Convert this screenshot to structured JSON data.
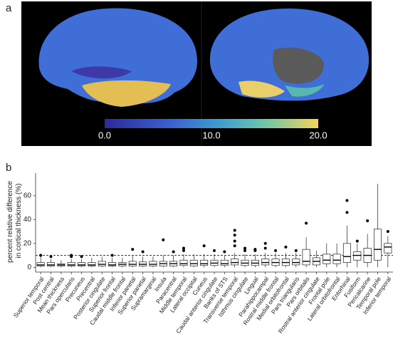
{
  "panel_a": {
    "label": "a",
    "colorbar": {
      "lim": [
        0,
        20
      ],
      "ticks": [
        {
          "value": 0,
          "label": "0.0"
        },
        {
          "value": 10,
          "label": "10.0"
        },
        {
          "value": 20,
          "label": "20.0"
        }
      ]
    }
  },
  "chart_data": {
    "type": "box",
    "panel_label": "b",
    "y_label": [
      "percent relative difference",
      "in cortical thickness (%)"
    ],
    "ylim": [
      -4,
      79
    ],
    "yticks": [
      0,
      20,
      40,
      60
    ],
    "reference_line": 10,
    "categories": [
      "Superior temporal",
      "Post central",
      "Mean thickness",
      "Pars opercularis",
      "Precuneus",
      "Precentral",
      "Posterior cingulate",
      "Superior frontal",
      "Caudal middle frontal",
      "Inferior parietal",
      "Superior parietal",
      "Supramarginal",
      "Insula",
      "Paracentral",
      "Middle temporal",
      "Lateral occipital",
      "Cuneus",
      "Caudal anterior cingulate",
      "Banks of STS",
      "Transverse temporal",
      "Isthmus cingulate",
      "Lingual",
      "Parahippocampal",
      "Rostral middle frontal",
      "Medial orbitofrontal",
      "Pars triangularis",
      "Pars orbitalis",
      "Rostral anterior cingulate",
      "Frontal pole",
      "Lateral orbitofrontal",
      "Entorhinal",
      "Fusiform",
      "Pericalcarine",
      "Temporal pole",
      "Inferior temporal"
    ],
    "boxes": [
      {
        "min": 0,
        "q1": 1,
        "median": 2,
        "q3": 4,
        "max": 9,
        "outliers": [
          10
        ]
      },
      {
        "min": 0,
        "q1": 1,
        "median": 2,
        "q3": 4,
        "max": 7,
        "outliers": [
          9
        ]
      },
      {
        "min": 0,
        "q1": 1,
        "median": 2,
        "q3": 3,
        "max": 6,
        "outliers": []
      },
      {
        "min": 0,
        "q1": 1,
        "median": 2,
        "q3": 4,
        "max": 7,
        "outliers": [
          9,
          10
        ]
      },
      {
        "min": 0,
        "q1": 1,
        "median": 2,
        "q3": 4,
        "max": 7,
        "outliers": [
          9
        ]
      },
      {
        "min": 0,
        "q1": 1,
        "median": 2,
        "q3": 4,
        "max": 8,
        "outliers": []
      },
      {
        "min": 0,
        "q1": 1,
        "median": 2.5,
        "q3": 5,
        "max": 9,
        "outliers": []
      },
      {
        "min": 0,
        "q1": 1,
        "median": 2,
        "q3": 4,
        "max": 8,
        "outliers": [
          10
        ]
      },
      {
        "min": 0,
        "q1": 1,
        "median": 2.5,
        "q3": 4,
        "max": 8,
        "outliers": []
      },
      {
        "min": 0,
        "q1": 1,
        "median": 2.5,
        "q3": 5,
        "max": 10,
        "outliers": [
          15
        ]
      },
      {
        "min": 0,
        "q1": 1,
        "median": 2.5,
        "q3": 4.5,
        "max": 9,
        "outliers": [
          13
        ]
      },
      {
        "min": 0,
        "q1": 1,
        "median": 2.5,
        "q3": 5,
        "max": 9,
        "outliers": []
      },
      {
        "min": 0,
        "q1": 1,
        "median": 3,
        "q3": 5,
        "max": 10,
        "outliers": [
          23
        ]
      },
      {
        "min": 0,
        "q1": 1,
        "median": 3,
        "q3": 5,
        "max": 10,
        "outliers": [
          13
        ]
      },
      {
        "min": 0,
        "q1": 1.5,
        "median": 3,
        "q3": 6,
        "max": 11,
        "outliers": [
          14,
          16
        ]
      },
      {
        "min": 0,
        "q1": 1,
        "median": 3,
        "q3": 6,
        "max": 11,
        "outliers": []
      },
      {
        "min": 0,
        "q1": 1.5,
        "median": 3,
        "q3": 6,
        "max": 11,
        "outliers": [
          18
        ]
      },
      {
        "min": 0,
        "q1": 1.5,
        "median": 3.5,
        "q3": 6,
        "max": 11,
        "outliers": [
          14
        ]
      },
      {
        "min": 0,
        "q1": 1.5,
        "median": 3,
        "q3": 6,
        "max": 10,
        "outliers": [
          13
        ]
      },
      {
        "min": 0,
        "q1": 2,
        "median": 4,
        "q3": 7,
        "max": 12,
        "outliers": [
          18,
          22,
          27,
          31
        ]
      },
      {
        "min": 0,
        "q1": 1.5,
        "median": 3.5,
        "q3": 6,
        "max": 11,
        "outliers": [
          14,
          16
        ]
      },
      {
        "min": 0,
        "q1": 1.5,
        "median": 3.5,
        "q3": 6,
        "max": 11,
        "outliers": [
          14,
          15
        ]
      },
      {
        "min": 0,
        "q1": 2,
        "median": 4,
        "q3": 7,
        "max": 12,
        "outliers": [
          16,
          20
        ]
      },
      {
        "min": 0,
        "q1": 1.5,
        "median": 4,
        "q3": 7,
        "max": 12,
        "outliers": [
          14
        ]
      },
      {
        "min": 0,
        "q1": 1.5,
        "median": 4,
        "q3": 7,
        "max": 12,
        "outliers": [
          17
        ]
      },
      {
        "min": 0,
        "q1": 2,
        "median": 4,
        "q3": 7,
        "max": 12,
        "outliers": [
          14
        ]
      },
      {
        "min": 0,
        "q1": 2,
        "median": 5,
        "q3": 15,
        "max": 25,
        "outliers": [
          37
        ]
      },
      {
        "min": 0,
        "q1": 2,
        "median": 5,
        "q3": 8,
        "max": 14,
        "outliers": []
      },
      {
        "min": 0,
        "q1": 3,
        "median": 6,
        "q3": 11,
        "max": 20,
        "outliers": []
      },
      {
        "min": 0,
        "q1": 3,
        "median": 6,
        "q3": 11,
        "max": 20,
        "outliers": []
      },
      {
        "min": 0,
        "q1": 4,
        "median": 9,
        "q3": 20,
        "max": 35,
        "outliers": [
          46,
          56
        ]
      },
      {
        "min": 0,
        "q1": 6,
        "median": 10,
        "q3": 13,
        "max": 20,
        "outliers": [
          22
        ]
      },
      {
        "min": 0,
        "q1": 4,
        "median": 10,
        "q3": 16,
        "max": 28,
        "outliers": [
          39
        ]
      },
      {
        "min": 0,
        "q1": 6,
        "median": 15,
        "q3": 32,
        "max": 70,
        "outliers": []
      },
      {
        "min": 0,
        "q1": 12,
        "median": 17,
        "q3": 20,
        "max": 26,
        "outliers": [
          30
        ]
      }
    ]
  }
}
